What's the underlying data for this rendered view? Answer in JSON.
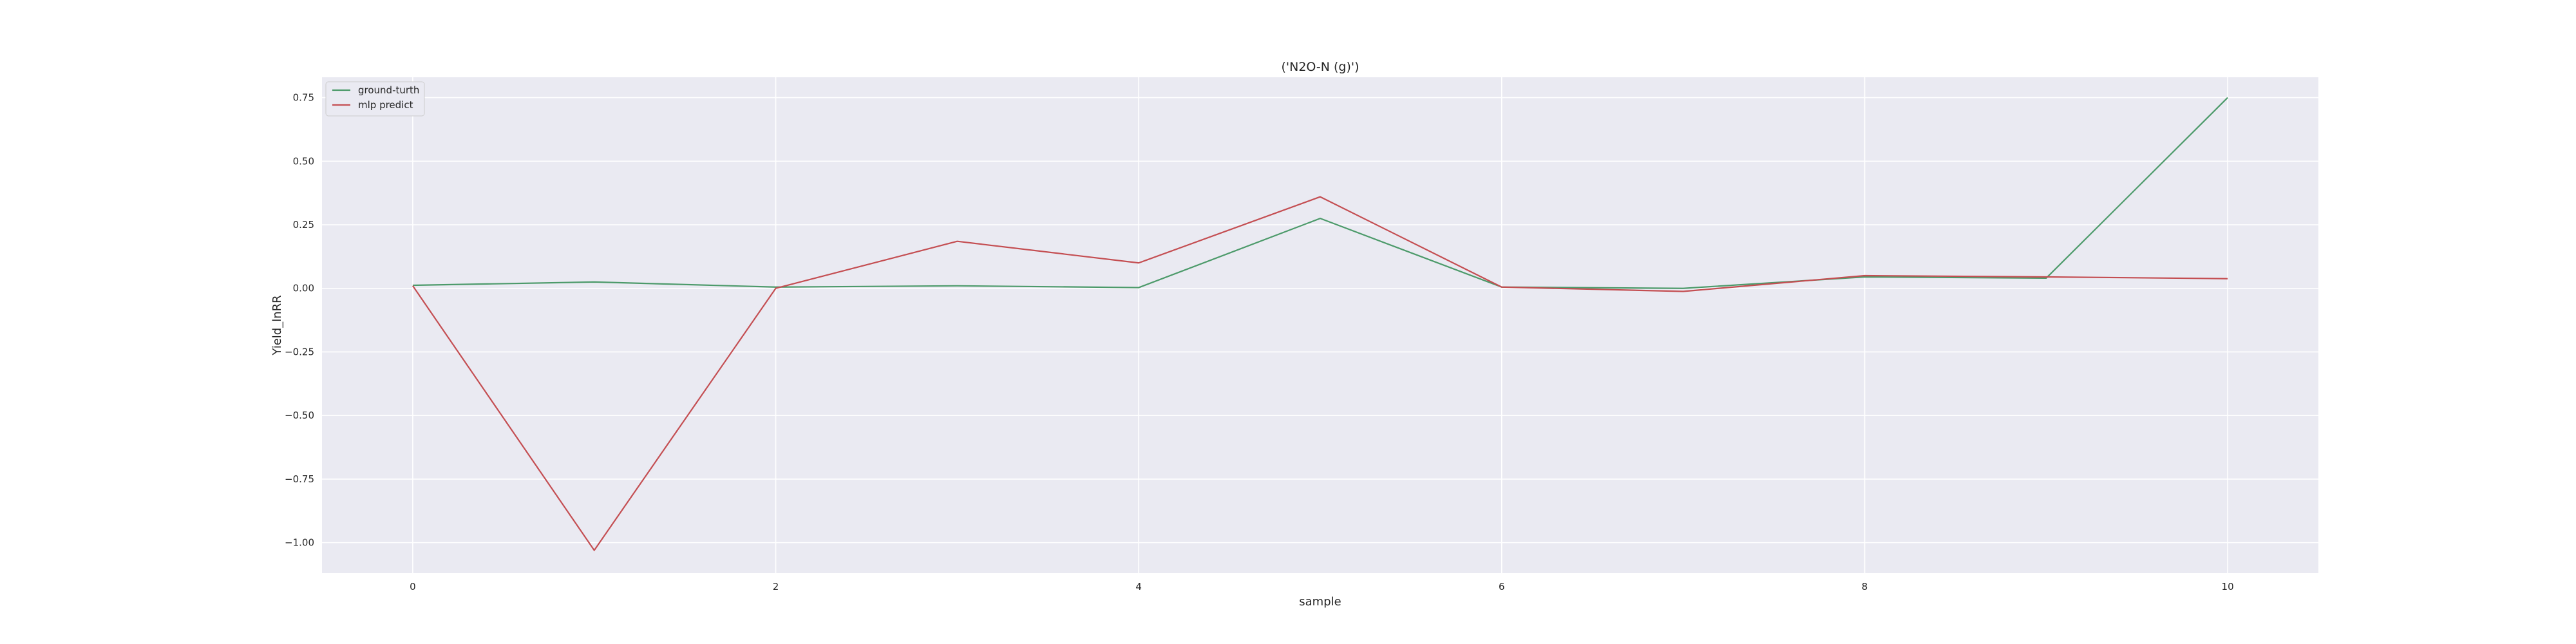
{
  "chart_data": {
    "type": "line",
    "title": "('N2O-N (g)')",
    "xlabel": "sample",
    "ylabel": "Yield_lnRR",
    "x": [
      0,
      1,
      2,
      3,
      4,
      5,
      6,
      7,
      8,
      9,
      10
    ],
    "xlim": [
      -0.5,
      10.5
    ],
    "ylim": [
      -1.12,
      0.83
    ],
    "xticks": [
      0,
      2,
      4,
      6,
      8,
      10
    ],
    "yticks": [
      -1.0,
      -0.75,
      -0.5,
      -0.25,
      0.0,
      0.25,
      0.5,
      0.75
    ],
    "ytick_labels": [
      "−1.00",
      "−0.75",
      "−0.50",
      "−0.25",
      "0.00",
      "0.25",
      "0.50",
      "0.75"
    ],
    "grid": true,
    "legend_position": "top-left",
    "background": "#eaeaf2",
    "series": [
      {
        "name": "ground-turth",
        "color": "#4c9a6a",
        "values": [
          0.012,
          0.025,
          0.005,
          0.01,
          0.003,
          0.275,
          0.005,
          0.0,
          0.045,
          0.04,
          0.75
        ]
      },
      {
        "name": "mlp predict",
        "color": "#c44e52",
        "values": [
          0.01,
          -1.03,
          0.0,
          0.185,
          0.1,
          0.36,
          0.005,
          -0.012,
          0.05,
          0.045,
          0.038
        ]
      }
    ]
  }
}
